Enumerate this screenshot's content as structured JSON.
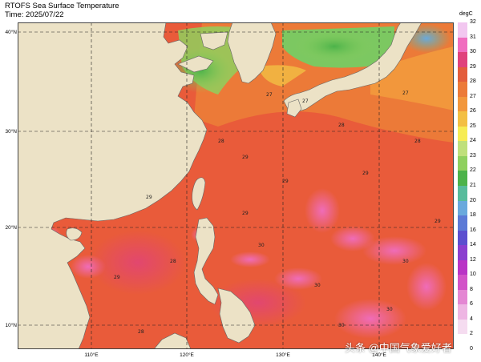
{
  "header": {
    "title": "RTOFS Sea Surface Temperature",
    "time": "Time: 2025/07/22"
  },
  "map": {
    "lat_labels": [
      "40°N",
      "30°N",
      "20°N",
      "10°N"
    ],
    "lon_labels": [
      "110°E",
      "120°E",
      "130°E",
      "140°E"
    ],
    "land_color": "#ece2c6",
    "contour_labels": [
      "27",
      "28",
      "29",
      "29",
      "28",
      "27",
      "29",
      "30",
      "29",
      "28",
      "29",
      "30",
      "30",
      "30",
      "29",
      "28",
      "30",
      "29",
      "28",
      "27"
    ]
  },
  "colorbar": {
    "units": "degC",
    "ticks": [
      "32",
      "31",
      "30",
      "29",
      "28",
      "27",
      "26",
      "25",
      "24",
      "23",
      "22",
      "21",
      "20",
      "18",
      "16",
      "14",
      "12",
      "10",
      "8",
      "6",
      "4",
      "2",
      "0"
    ],
    "colors": [
      "#f2c7f0",
      "#f06dbf",
      "#e0427c",
      "#e35d3c",
      "#ec7a38",
      "#f2973c",
      "#f3bf43",
      "#f6ec54",
      "#bfe07b",
      "#8fd05e",
      "#4cb34a",
      "#57bc9c",
      "#6aa9dd",
      "#5c7ad6",
      "#5b4fcf",
      "#8b3fcf",
      "#b934c6",
      "#d253c8",
      "#e487d3",
      "#eeb6e3",
      "#f5dcf0",
      "#ffffff"
    ]
  },
  "watermark": {
    "text": "头条 @中国气象爱好者"
  }
}
